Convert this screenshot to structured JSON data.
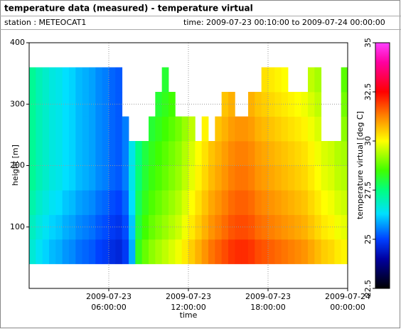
{
  "chart_data": {
    "type": "heatmap",
    "title": "temperature data (measured) - temperature virtual",
    "station": "station : METEOCAT1",
    "time_range": "time: 2009-07-23 00:10:00 to 2009-07-24 00:00:00",
    "xlabel": "time",
    "ylabel": "height [m]",
    "colorbar_label": "temperature virtual [deg C]",
    "x": [
      0,
      0.5,
      1,
      1.5,
      2,
      2.5,
      3,
      3.5,
      4,
      4.5,
      5,
      5.5,
      6,
      6.5,
      7,
      7.5,
      8,
      8.5,
      9,
      9.5,
      10,
      10.5,
      11,
      11.5,
      12,
      12.5,
      13,
      13.5,
      14,
      14.5,
      15,
      15.5,
      16,
      16.5,
      17,
      17.5,
      18,
      18.5,
      19,
      19.5,
      20,
      20.5,
      21,
      21.5,
      22,
      22.5,
      23,
      23.5
    ],
    "x_step": 0.5,
    "y_bins": [
      40,
      80,
      120,
      160,
      200,
      240,
      280,
      320,
      360
    ],
    "z": [
      [
        26.7,
        26.4,
        26.2,
        26.0,
        25.9,
        25.7,
        25.6,
        25.4,
        25.3,
        25.2,
        25.0,
        24.9,
        24.7,
        24.6,
        24.9,
        25.9,
        28.3,
        28.8,
        29.1,
        29.3,
        29.5,
        29.7,
        29.9,
        30.2,
        30.5,
        30.8,
        31.1,
        31.4,
        31.6,
        31.8,
        32.0,
        32.1,
        32.1,
        32.0,
        31.8,
        31.7,
        31.6,
        31.5,
        31.4,
        31.3,
        31.2,
        31.1,
        30.9,
        30.7,
        30.5,
        30.4,
        30.2,
        30.1
      ],
      [
        26.9,
        26.6,
        26.4,
        26.2,
        26.1,
        25.9,
        25.8,
        25.6,
        25.5,
        25.4,
        25.2,
        25.1,
        24.9,
        24.8,
        25.1,
        26.1,
        28.0,
        28.5,
        28.8,
        29.0,
        29.2,
        29.4,
        29.6,
        29.9,
        30.2,
        30.5,
        30.8,
        31.1,
        31.3,
        31.5,
        31.7,
        31.8,
        31.8,
        31.7,
        31.5,
        31.4,
        31.3,
        31.2,
        31.1,
        31.0,
        30.9,
        30.8,
        30.6,
        30.4,
        30.2,
        30.1,
        29.9,
        29.8
      ],
      [
        27.1,
        26.8,
        26.6,
        26.4,
        26.3,
        26.1,
        26.0,
        25.8,
        25.7,
        25.6,
        25.4,
        25.3,
        25.1,
        25.0,
        25.3,
        26.3,
        27.8,
        28.3,
        28.6,
        28.8,
        29.0,
        29.2,
        29.4,
        29.7,
        30.0,
        30.3,
        30.6,
        30.9,
        31.1,
        31.3,
        31.5,
        31.6,
        31.6,
        31.5,
        31.3,
        31.2,
        31.1,
        31.0,
        30.9,
        30.8,
        30.7,
        30.6,
        30.4,
        30.2,
        30.0,
        29.9,
        29.7,
        29.6
      ],
      [
        27.3,
        27.0,
        26.8,
        26.6,
        26.5,
        26.3,
        26.2,
        26.0,
        25.9,
        25.8,
        25.6,
        25.5,
        25.3,
        25.2,
        25.5,
        26.5,
        27.6,
        28.1,
        28.4,
        28.6,
        28.8,
        29.0,
        29.2,
        29.5,
        29.8,
        30.1,
        30.4,
        30.7,
        30.9,
        31.1,
        31.3,
        31.4,
        31.4,
        31.3,
        31.1,
        31.0,
        30.9,
        30.8,
        30.7,
        30.6,
        30.5,
        30.4,
        30.2,
        30.0,
        29.8,
        29.7,
        29.5,
        29.4
      ],
      [
        27.3,
        27.0,
        26.8,
        26.6,
        26.5,
        26.3,
        26.2,
        26.0,
        25.9,
        25.8,
        25.6,
        25.5,
        25.3,
        25.2,
        25.5,
        26.5,
        27.5,
        28.0,
        28.3,
        28.5,
        28.7,
        28.9,
        29.1,
        29.4,
        29.7,
        30.0,
        30.3,
        30.6,
        30.8,
        31.0,
        31.2,
        31.3,
        31.3,
        31.2,
        31.0,
        30.9,
        30.8,
        30.7,
        30.6,
        30.5,
        30.4,
        30.3,
        30.1,
        29.9,
        29.7,
        29.6,
        29.4,
        29.3
      ],
      [
        27.3,
        27.0,
        26.8,
        26.6,
        26.5,
        26.3,
        26.2,
        26.0,
        25.9,
        25.8,
        25.6,
        25.5,
        25.3,
        25.2,
        25.5,
        null,
        null,
        null,
        28.1,
        28.3,
        28.5,
        28.7,
        28.9,
        29.2,
        29.5,
        null,
        30.1,
        null,
        30.6,
        30.8,
        31.0,
        31.1,
        31.1,
        31.0,
        30.8,
        30.7,
        30.6,
        30.5,
        30.4,
        30.3,
        30.2,
        30.1,
        29.9,
        29.7,
        null,
        null,
        null,
        29.1
      ],
      [
        27.3,
        27.0,
        26.8,
        26.6,
        26.5,
        26.3,
        26.2,
        26.0,
        25.9,
        25.8,
        25.6,
        25.5,
        25.3,
        25.2,
        null,
        null,
        null,
        null,
        null,
        28.1,
        28.3,
        28.5,
        null,
        null,
        null,
        null,
        null,
        null,
        null,
        30.6,
        30.8,
        null,
        null,
        30.8,
        30.6,
        30.5,
        30.4,
        30.3,
        30.2,
        30.1,
        30.0,
        29.9,
        29.7,
        29.5,
        null,
        null,
        null,
        28.9
      ],
      [
        27.3,
        27.0,
        26.8,
        26.6,
        26.5,
        26.3,
        26.2,
        26.0,
        25.9,
        25.8,
        25.6,
        25.5,
        25.3,
        25.2,
        null,
        null,
        null,
        null,
        null,
        null,
        28.1,
        null,
        null,
        null,
        null,
        null,
        null,
        null,
        null,
        null,
        null,
        null,
        null,
        null,
        null,
        30.3,
        30.2,
        30.1,
        30.0,
        null,
        null,
        null,
        29.5,
        29.3,
        null,
        null,
        null,
        28.7
      ]
    ],
    "colorscale": [
      [
        22.5,
        "#000000"
      ],
      [
        24,
        "#0000a0"
      ],
      [
        25,
        "#0040ff"
      ],
      [
        26.3,
        "#00e0ff"
      ],
      [
        27.5,
        "#00ff80"
      ],
      [
        28.5,
        "#40ff00"
      ],
      [
        30,
        "#ffff00"
      ],
      [
        31.3,
        "#ff8000"
      ],
      [
        32.5,
        "#ff0000"
      ],
      [
        34,
        "#ff00a0"
      ],
      [
        35,
        "#ff40ff"
      ]
    ],
    "xlim": [
      0,
      24
    ],
    "xticks": [
      {
        "value": 6,
        "label": "2009-07-23 06:00:00"
      },
      {
        "value": 12,
        "label": "2009-07-23 12:00:00"
      },
      {
        "value": 18,
        "label": "2009-07-23 18:00:00"
      },
      {
        "value": 24,
        "label": "2009-07-24 00:00:00"
      }
    ],
    "ylim": [
      0,
      400
    ],
    "yticks": [
      100,
      200,
      300,
      400
    ],
    "clim": [
      22.5,
      35
    ],
    "cticks": [
      22.5,
      25,
      27.5,
      30,
      32.5,
      35
    ],
    "grid": true
  }
}
